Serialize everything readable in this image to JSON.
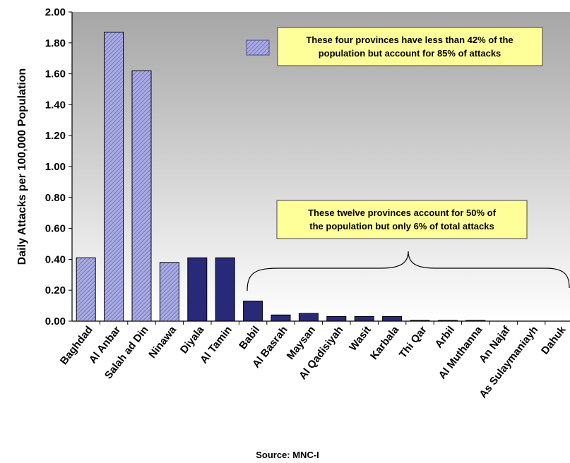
{
  "chart_data": {
    "type": "bar",
    "title": "",
    "ylabel": "Daily Attacks per 100,000 Population",
    "xlabel": "",
    "ylim": [
      0,
      2.0
    ],
    "yticks": [
      "0.00",
      "0.20",
      "0.40",
      "0.60",
      "0.80",
      "1.00",
      "1.20",
      "1.40",
      "1.60",
      "1.80",
      "2.00"
    ],
    "categories": [
      "Baghdad",
      "Al Anbar",
      "Salah ad Din",
      "Ninawa",
      "Diyala",
      "Al Tamin",
      "Babil",
      "Al Basrah",
      "Maysan",
      "Al Qadisiyah",
      "Wasit",
      "Karbala",
      "Thi Qar",
      "Arbil",
      "Al Muthanna",
      "An Najaf",
      "As Sulaymaniayh",
      "Dahuk"
    ],
    "values": [
      0.41,
      1.87,
      1.62,
      0.38,
      0.41,
      0.41,
      0.13,
      0.04,
      0.05,
      0.03,
      0.03,
      0.03,
      0.005,
      0.005,
      0.005,
      0.0,
      0.0,
      0.0
    ],
    "bar_styles": [
      "hatched",
      "hatched",
      "hatched",
      "hatched",
      "solid",
      "solid",
      "solid",
      "solid",
      "solid",
      "solid",
      "solid",
      "solid",
      "solid",
      "solid",
      "solid",
      "solid",
      "solid",
      "solid"
    ],
    "grid": false,
    "background": "gradient-gray",
    "colors": {
      "solid_bar": "#29297a",
      "hatch_bar": "#a9abdf",
      "hatch_line": "#6a6cc0",
      "note_box": "#ffff99"
    },
    "annotations": [
      {
        "text_lines": [
          "These four provinces have less than 42% of the",
          "population but account for 85% of attacks"
        ],
        "legend_swatch": "hatched"
      },
      {
        "text_lines": [
          "These twelve provinces account for 50% of",
          "the population but only 6% of total attacks"
        ],
        "bracket": "Babil-Dahuk"
      }
    ],
    "source": "Source:  MNC-I"
  }
}
